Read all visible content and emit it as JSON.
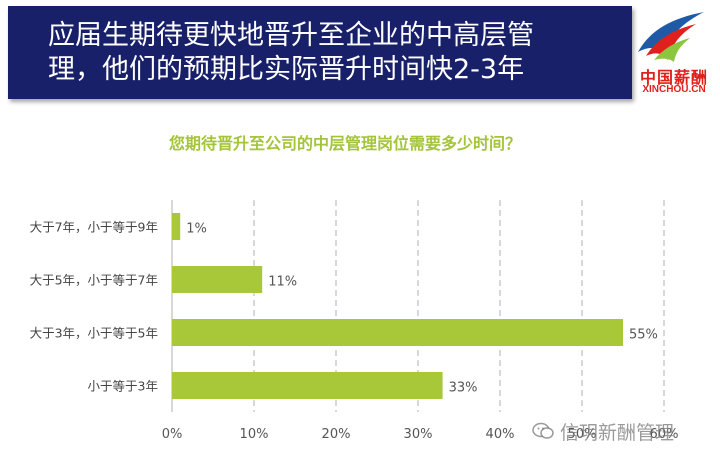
{
  "header": {
    "line1": "应届生期待更快地晋升至企业的中高层管",
    "line2": "理，他们的预期比实际晋升时间快2-3年"
  },
  "logo": {
    "text_cn": "中国薪酬",
    "text_en": "XINCHOU.CN"
  },
  "watermark": {
    "text": "信玥新酬管理",
    "icon": "wechat-icon"
  },
  "colors": {
    "header_bg": "#18206a",
    "bar": "#a8c83a",
    "title": "#a4c43a",
    "logo_red": "#e0201c",
    "logo_blue": "#1f5aa6",
    "logo_green": "#8cc63f"
  },
  "chart_data": {
    "type": "bar",
    "orientation": "horizontal",
    "title": "您期待晋升至公司的中层管理岗位需要多少时间？",
    "categories": [
      "大于7年，小于等于9年",
      "大于5年，小于等于7年",
      "大于3年，小于等于5年",
      "小于等于3年"
    ],
    "values": [
      1,
      11,
      55,
      33
    ],
    "value_labels": [
      "1%",
      "11%",
      "55%",
      "33%"
    ],
    "x_ticks": [
      "0%",
      "10%",
      "20%",
      "30%",
      "40%",
      "50%",
      "60%"
    ],
    "xlim": [
      0,
      60
    ],
    "xlabel": "",
    "ylabel": "",
    "grid": "vertical dashed",
    "legend": "none"
  }
}
